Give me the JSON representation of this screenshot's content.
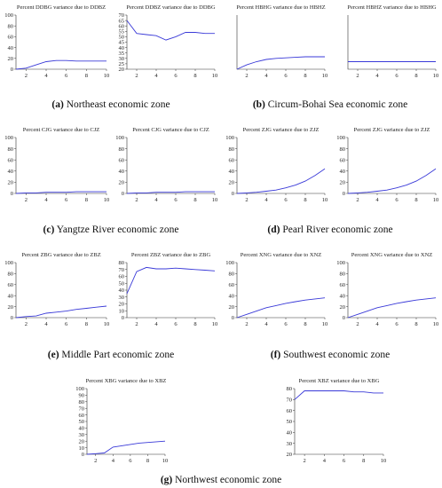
{
  "chart_data": [
    {
      "type": "line",
      "title": "Percent DDBG variance due to DDBZ",
      "ylim": [
        0,
        100
      ],
      "yticks": [
        0,
        20,
        40,
        60,
        80,
        100
      ],
      "xlim": [
        1,
        10
      ],
      "xticks": [
        2,
        4,
        6,
        8,
        10
      ],
      "x": [
        1,
        2,
        3,
        4,
        5,
        6,
        7,
        8,
        9,
        10
      ],
      "series": [
        {
          "values": [
            0,
            2,
            8,
            14,
            16,
            16,
            15,
            15,
            15,
            15
          ]
        }
      ]
    },
    {
      "type": "line",
      "title": "Percent DDBZ variance due to DDBG",
      "ylim": [
        20,
        70
      ],
      "yticks": [
        20,
        25,
        30,
        35,
        40,
        45,
        50,
        55,
        60,
        65,
        70
      ],
      "xlim": [
        1,
        10
      ],
      "xticks": [
        2,
        4,
        6,
        8,
        10
      ],
      "x": [
        1,
        2,
        3,
        4,
        5,
        6,
        7,
        8,
        9,
        10
      ],
      "series": [
        {
          "values": [
            65,
            53,
            52,
            51,
            47,
            50,
            54,
            54,
            53,
            53
          ]
        }
      ]
    },
    {
      "type": "line",
      "title": "Percent HBHG variance due to HBHZ",
      "ylim": [
        0,
        100
      ],
      "yticks": [],
      "xlim": [
        1,
        10
      ],
      "xticks": [
        2,
        4,
        6,
        8,
        10
      ],
      "x": [
        1,
        2,
        3,
        4,
        5,
        6,
        7,
        8,
        9,
        10
      ],
      "series": [
        {
          "values": [
            0,
            8,
            14,
            18,
            20,
            21,
            22,
            23,
            23,
            23
          ]
        }
      ]
    },
    {
      "type": "line",
      "title": "Percent HBHZ variance due to HBHG",
      "ylim": [
        0,
        100
      ],
      "yticks": [],
      "xlim": [
        1,
        10
      ],
      "xticks": [
        2,
        4,
        6,
        8,
        10
      ],
      "x": [
        1,
        2,
        3,
        4,
        5,
        6,
        7,
        8,
        9,
        10
      ],
      "series": [
        {
          "values": [
            14,
            14,
            14,
            14,
            14,
            14,
            14,
            14,
            14,
            14
          ]
        }
      ]
    },
    {
      "type": "line",
      "title": "Percent CJG variance due to CJZ",
      "ylim": [
        0,
        100
      ],
      "yticks": [
        0,
        20,
        40,
        60,
        80,
        100
      ],
      "xlim": [
        1,
        10
      ],
      "xticks": [
        2,
        4,
        6,
        8,
        10
      ],
      "x": [
        1,
        2,
        3,
        4,
        5,
        6,
        7,
        8,
        9,
        10
      ],
      "series": [
        {
          "values": [
            0,
            1,
            1,
            2,
            2,
            2,
            3,
            3,
            3,
            3
          ]
        }
      ]
    },
    {
      "type": "line",
      "title": "Percent CJG variance due to CJZ",
      "ylim": [
        0,
        100
      ],
      "yticks": [
        0,
        20,
        40,
        60,
        80,
        100
      ],
      "xlim": [
        1,
        10
      ],
      "xticks": [
        2,
        4,
        6,
        8,
        10
      ],
      "x": [
        1,
        2,
        3,
        4,
        5,
        6,
        7,
        8,
        9,
        10
      ],
      "series": [
        {
          "values": [
            0,
            1,
            1,
            2,
            2,
            2,
            3,
            3,
            3,
            3
          ]
        }
      ]
    },
    {
      "type": "line",
      "title": "Percent ZJG variance due to ZJZ",
      "ylim": [
        0,
        100
      ],
      "yticks": [
        0,
        20,
        40,
        60,
        80,
        100
      ],
      "xlim": [
        1,
        10
      ],
      "xticks": [
        2,
        4,
        6,
        8,
        10
      ],
      "x": [
        1,
        2,
        3,
        4,
        5,
        6,
        7,
        8,
        9,
        10
      ],
      "series": [
        {
          "values": [
            0,
            1,
            2,
            4,
            6,
            10,
            15,
            22,
            32,
            44
          ]
        }
      ]
    },
    {
      "type": "line",
      "title": "Percent ZJG variance due to ZJZ",
      "ylim": [
        0,
        100
      ],
      "yticks": [
        0,
        20,
        40,
        60,
        80,
        100
      ],
      "xlim": [
        1,
        10
      ],
      "xticks": [
        2,
        4,
        6,
        8,
        10
      ],
      "x": [
        1,
        2,
        3,
        4,
        5,
        6,
        7,
        8,
        9,
        10
      ],
      "series": [
        {
          "values": [
            0,
            1,
            2,
            4,
            6,
            10,
            15,
            22,
            32,
            44
          ]
        }
      ]
    },
    {
      "type": "line",
      "title": "Percent ZBG variance due to ZBZ",
      "ylim": [
        0,
        100
      ],
      "yticks": [
        0,
        20,
        40,
        60,
        80,
        100
      ],
      "xlim": [
        1,
        10
      ],
      "xticks": [
        2,
        4,
        6,
        8,
        10
      ],
      "x": [
        1,
        2,
        3,
        4,
        5,
        6,
        7,
        8,
        9,
        10
      ],
      "series": [
        {
          "values": [
            0,
            2,
            3,
            8,
            10,
            12,
            15,
            17,
            19,
            21
          ]
        }
      ]
    },
    {
      "type": "line",
      "title": "Percent ZBZ variance due to ZBG",
      "ylim": [
        0,
        80
      ],
      "yticks": [
        0,
        10,
        20,
        30,
        40,
        50,
        60,
        70,
        80
      ],
      "xlim": [
        1,
        10
      ],
      "xticks": [
        2,
        4,
        6,
        8,
        10
      ],
      "x": [
        1,
        2,
        3,
        4,
        5,
        6,
        7,
        8,
        9,
        10
      ],
      "series": [
        {
          "values": [
            35,
            67,
            73,
            71,
            71,
            72,
            71,
            70,
            69,
            68
          ]
        }
      ]
    },
    {
      "type": "line",
      "title": "Percent XNG variance due to XNZ",
      "ylim": [
        0,
        100
      ],
      "yticks": [
        0,
        20,
        40,
        60,
        80,
        100
      ],
      "xlim": [
        1,
        10
      ],
      "xticks": [
        2,
        4,
        6,
        8,
        10
      ],
      "x": [
        1,
        2,
        3,
        4,
        5,
        6,
        7,
        8,
        9,
        10
      ],
      "series": [
        {
          "values": [
            0,
            6,
            12,
            18,
            22,
            26,
            29,
            32,
            34,
            36
          ]
        }
      ]
    },
    {
      "type": "line",
      "title": "Percent XNG variance due to XNZ",
      "ylim": [
        0,
        100
      ],
      "yticks": [
        0,
        20,
        40,
        60,
        80,
        100
      ],
      "xlim": [
        1,
        10
      ],
      "xticks": [
        2,
        4,
        6,
        8,
        10
      ],
      "x": [
        1,
        2,
        3,
        4,
        5,
        6,
        7,
        8,
        9,
        10
      ],
      "series": [
        {
          "values": [
            0,
            6,
            12,
            18,
            22,
            26,
            29,
            32,
            34,
            36
          ]
        }
      ]
    },
    {
      "type": "line",
      "title": "Percent XBG variance due to XBZ",
      "ylim": [
        0,
        100
      ],
      "yticks": [
        0,
        10,
        20,
        30,
        40,
        50,
        60,
        70,
        80,
        90,
        100
      ],
      "xlim": [
        1,
        10
      ],
      "xticks": [
        2,
        4,
        6,
        8,
        10
      ],
      "x": [
        1,
        2,
        3,
        4,
        5,
        6,
        7,
        8,
        9,
        10
      ],
      "series": [
        {
          "values": [
            0,
            1,
            2,
            11,
            13,
            15,
            17,
            18,
            19,
            20
          ]
        }
      ]
    },
    {
      "type": "line",
      "title": "Percent XBZ variance due to XBG",
      "ylim": [
        20,
        80
      ],
      "yticks": [
        20,
        30,
        40,
        50,
        60,
        70,
        80
      ],
      "xlim": [
        1,
        10
      ],
      "xticks": [
        2,
        4,
        6,
        8,
        10
      ],
      "x": [
        1,
        2,
        3,
        4,
        5,
        6,
        7,
        8,
        9,
        10
      ],
      "series": [
        {
          "values": [
            70,
            78,
            78,
            78,
            78,
            78,
            77,
            77,
            76,
            76
          ]
        }
      ]
    }
  ],
  "captions": [
    {
      "label": "(a)",
      "text": " Northeast economic zone"
    },
    {
      "label": "(b)",
      "text": " Circum-Bohai Sea economic zone"
    },
    {
      "label": "(c)",
      "text": " Yangtze River economic zone"
    },
    {
      "label": "(d)",
      "text": " Pearl River economic zone"
    },
    {
      "label": "(e)",
      "text": " Middle Part economic zone"
    },
    {
      "label": "(f)",
      "text": " Southwest economic zone"
    },
    {
      "label": "(g)",
      "text": " Northwest economic zone"
    }
  ],
  "style": {
    "line_color": "#3a3ad8",
    "axis_color": "#333333"
  }
}
